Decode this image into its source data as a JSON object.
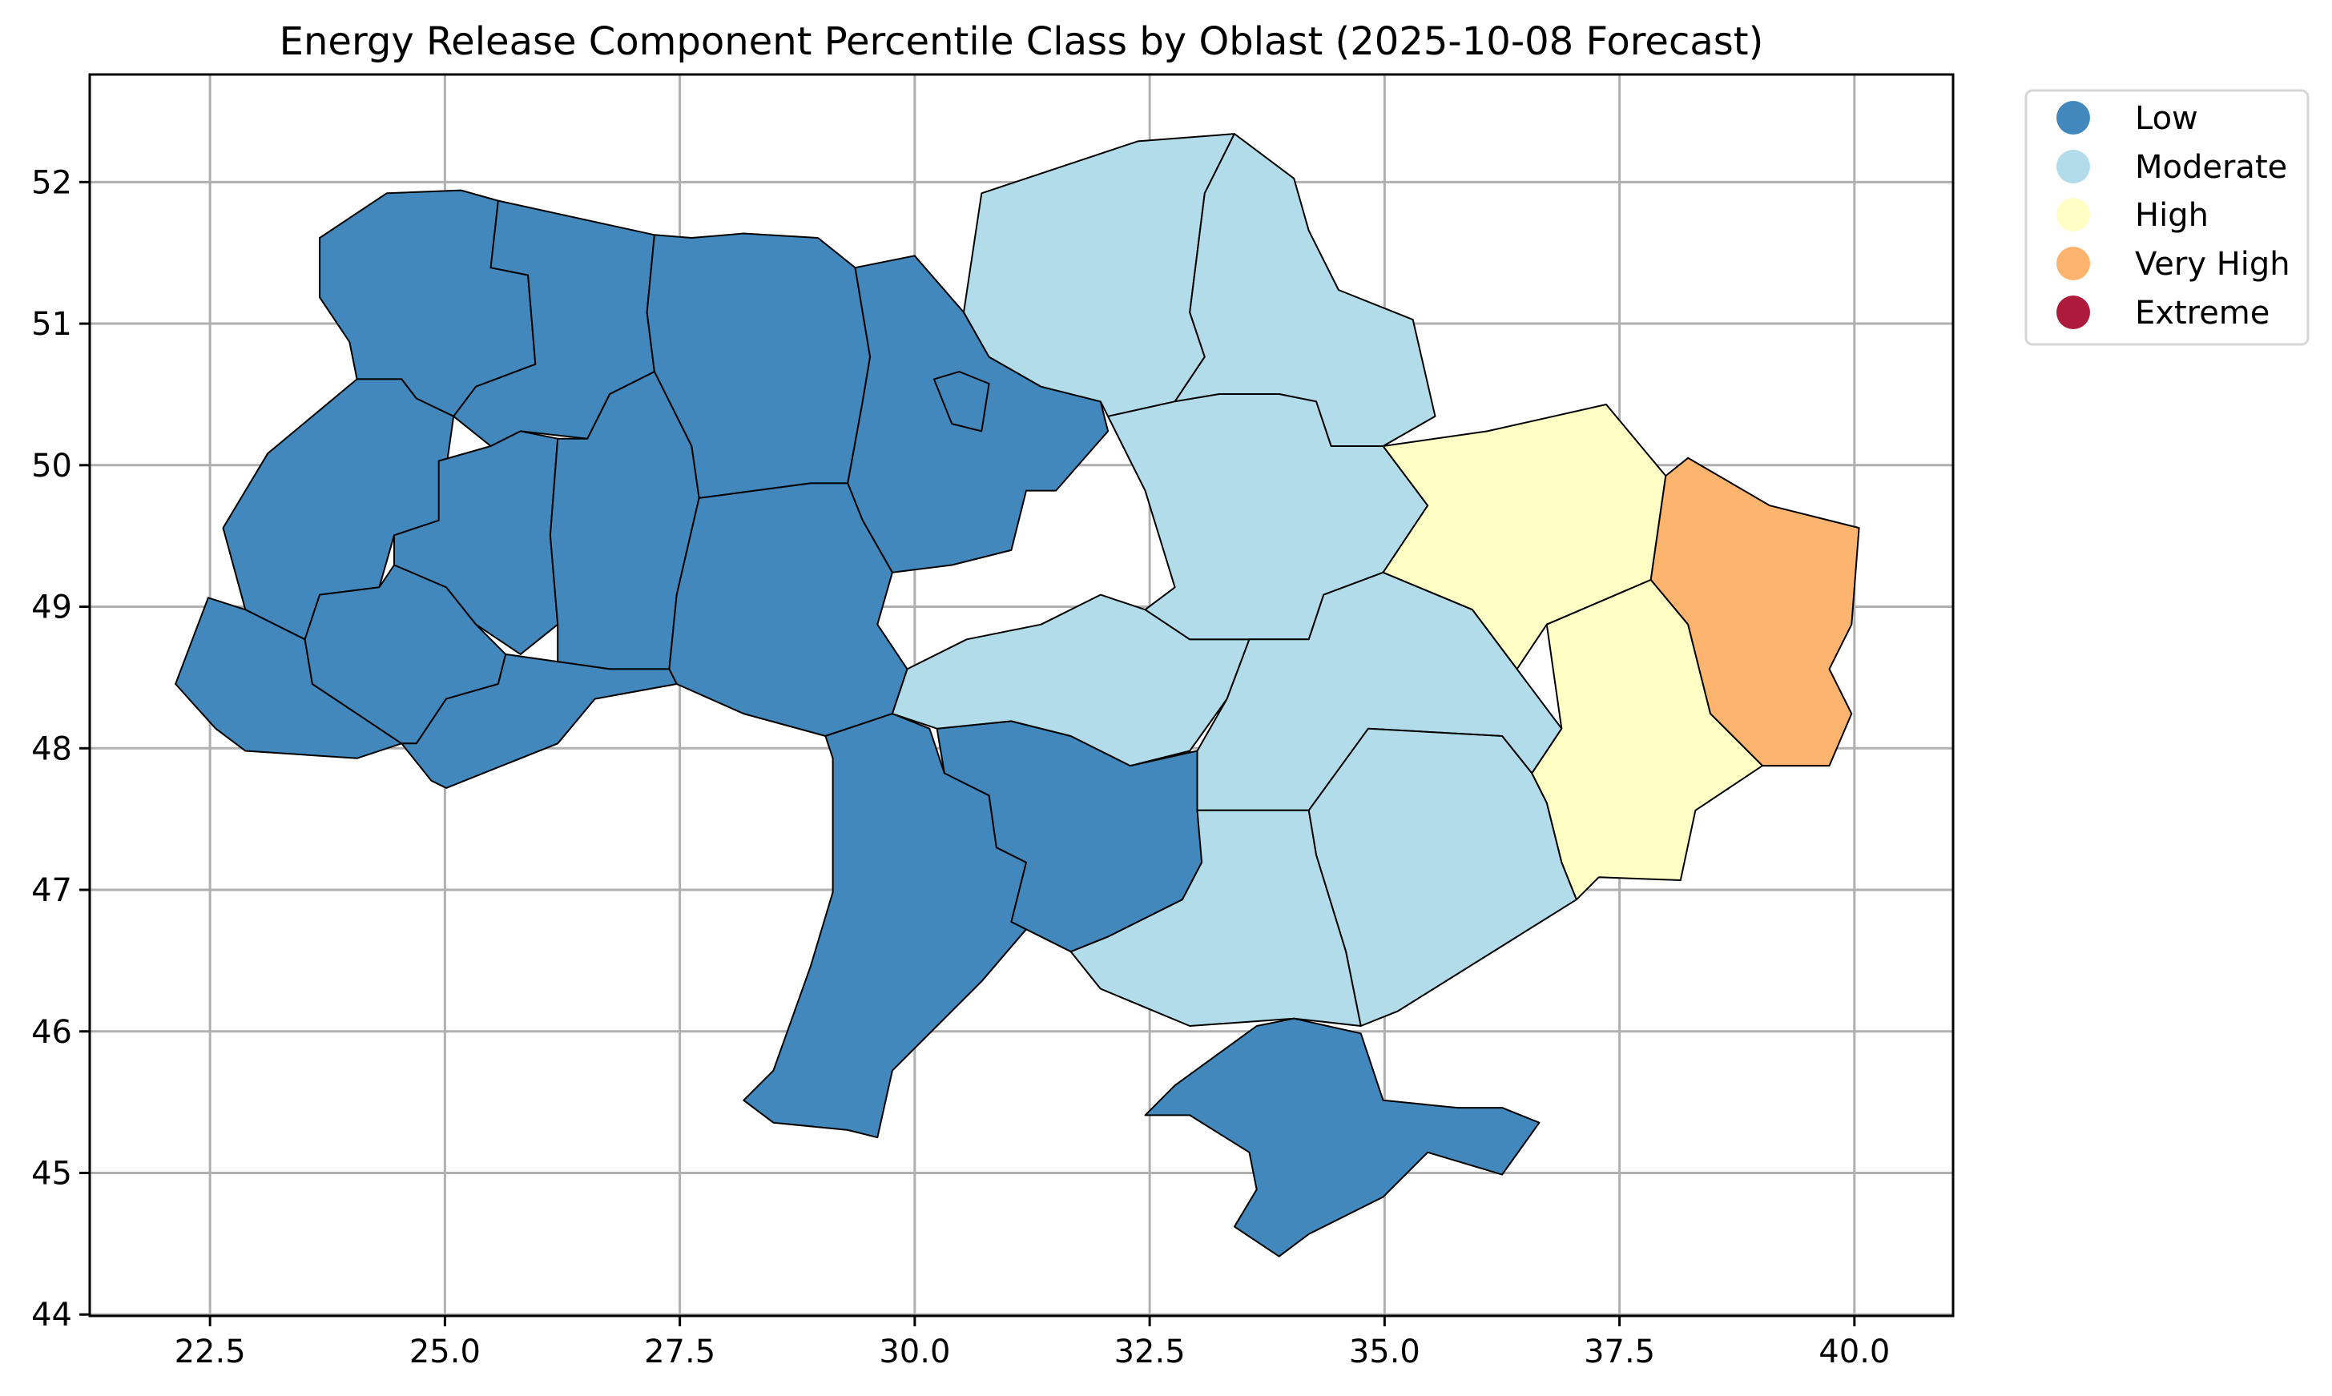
{
  "chart_data": {
    "type": "choropleth-map",
    "title": "Energy Release Component Percentile Class by Oblast (2025-10-08 Forecast)",
    "xlabel": "",
    "ylabel": "",
    "xlim": [
      21.22,
      41.05
    ],
    "ylim": [
      43.99,
      52.76
    ],
    "xticks": [
      "22.5",
      "25.0",
      "27.5",
      "30.0",
      "32.5",
      "35.0",
      "37.5",
      "40.0"
    ],
    "yticks": [
      "44",
      "45",
      "46",
      "47",
      "48",
      "49",
      "50",
      "51",
      "52"
    ],
    "grid": true,
    "legend_position": "outside-top-right",
    "legend": [
      {
        "label": "Low",
        "color": "#4288bc"
      },
      {
        "label": "Moderate",
        "color": "#b2dce9"
      },
      {
        "label": "High",
        "color": "#ffffc5"
      },
      {
        "label": "Very High",
        "color": "#fdb46e"
      },
      {
        "label": "Extreme",
        "color": "#ae1a3c"
      }
    ],
    "regions": [
      {
        "class": "Low"
      },
      {
        "class": "Low"
      },
      {
        "class": "Low"
      },
      {
        "class": "Low"
      },
      {
        "class": "Low"
      },
      {
        "class": "Low"
      },
      {
        "class": "Low"
      },
      {
        "class": "Low"
      },
      {
        "class": "Low"
      },
      {
        "class": "Low"
      },
      {
        "class": "Low"
      },
      {
        "class": "Low"
      },
      {
        "class": "Low"
      },
      {
        "class": "Moderate"
      },
      {
        "class": "Moderate"
      },
      {
        "class": "Moderate"
      },
      {
        "class": "Moderate"
      },
      {
        "class": "High"
      },
      {
        "class": "Very High"
      },
      {
        "class": "High"
      },
      {
        "class": "Moderate"
      },
      {
        "class": "Moderate"
      },
      {
        "class": "Moderate"
      },
      {
        "class": "Low"
      },
      {
        "class": "Low"
      }
    ]
  }
}
